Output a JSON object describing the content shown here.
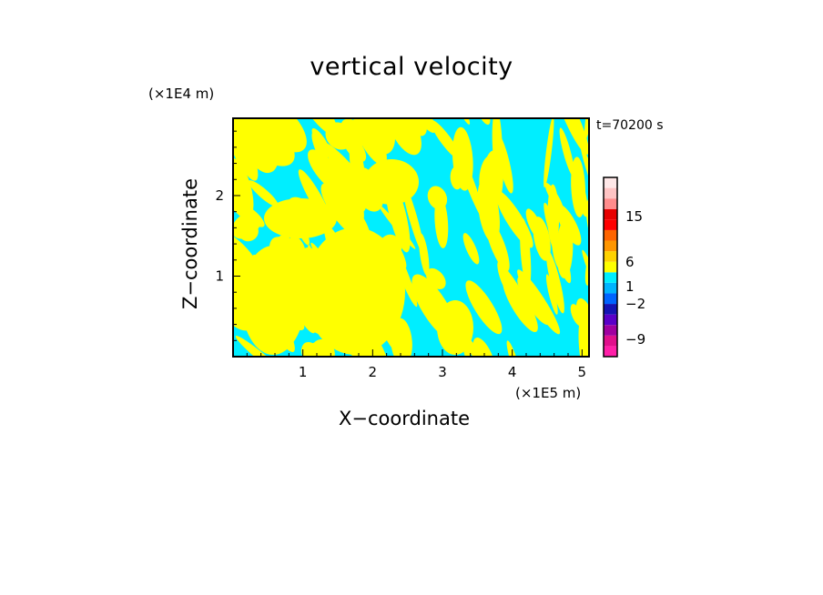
{
  "chart_data": {
    "type": "heatmap",
    "title": "vertical velocity",
    "time_label": "t=70200 s",
    "xlabel": "X−coordinate",
    "ylabel": "Z−coordinate",
    "x_unit": "(×1E5 m)",
    "y_unit": "(×1E4 m)",
    "xlim": [
      0,
      5.1
    ],
    "ylim": [
      0,
      2.96
    ],
    "x_ticks": [
      1,
      2,
      3,
      4,
      5
    ],
    "y_ticks": [
      1,
      2
    ],
    "field_colors": {
      "positive": "#ffff00",
      "negative": "#00eeff"
    },
    "colorbar": {
      "tick_labels": [
        "15",
        "6",
        "1",
        "−2",
        "−9"
      ],
      "tick_values": [
        15,
        6,
        1,
        -2,
        -9
      ],
      "bands": [
        {
          "color": "#ff1fa8"
        },
        {
          "color": "#e0108c"
        },
        {
          "color": "#a000a0"
        },
        {
          "color": "#5a00c8"
        },
        {
          "color": "#1414b4"
        },
        {
          "color": "#0064ff"
        },
        {
          "color": "#00b4ff"
        },
        {
          "color": "#00eeff"
        },
        {
          "color": "#ffff00"
        },
        {
          "color": "#ffd200"
        },
        {
          "color": "#ff9600"
        },
        {
          "color": "#ff6400"
        },
        {
          "color": "#ff0000"
        },
        {
          "color": "#e60000"
        },
        {
          "color": "#ff8c8c"
        },
        {
          "color": "#ffc4c4"
        },
        {
          "color": "#ffe8e8"
        }
      ]
    }
  }
}
